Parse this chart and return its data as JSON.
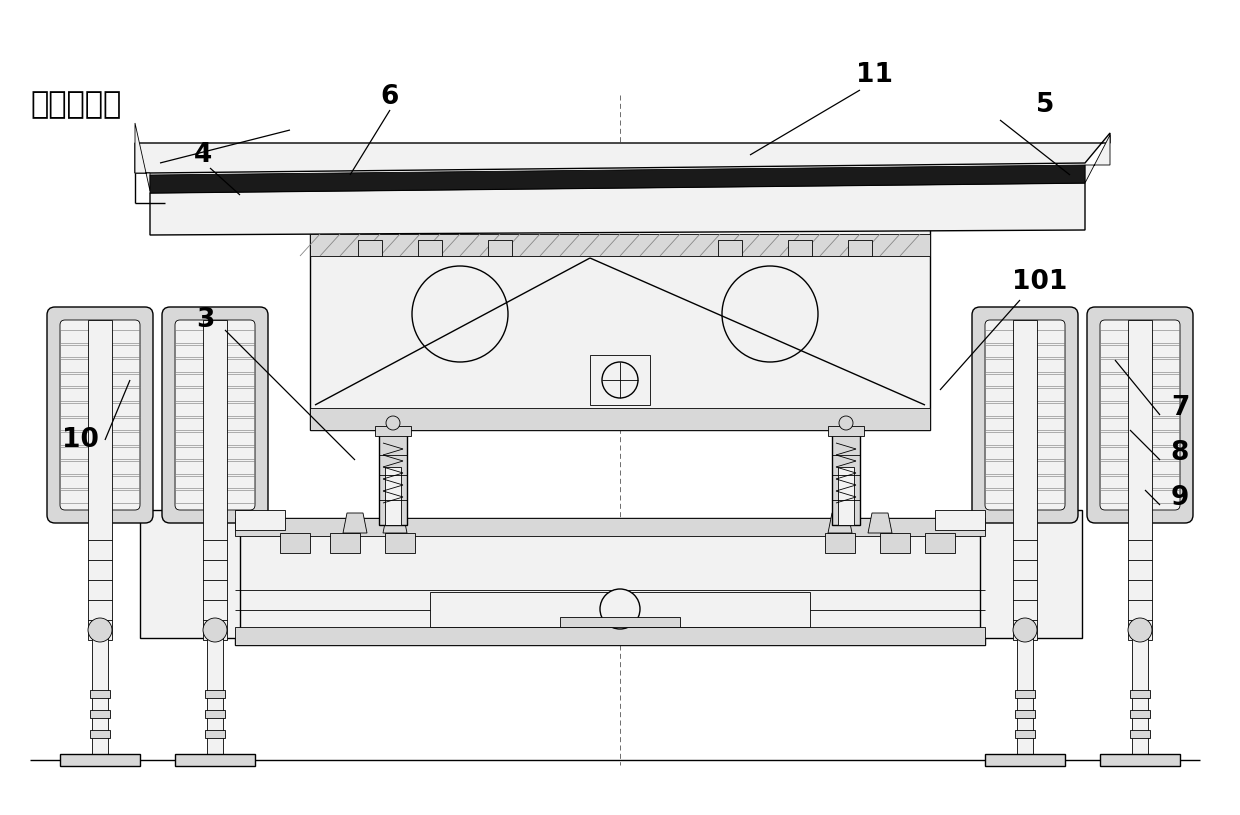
{
  "bg_color": "#ffffff",
  "figsize": [
    12.4,
    8.15
  ],
  "dpi": 100,
  "labels": {
    "tilt_sensor": "倾角传感器",
    "11": "11",
    "5": "5",
    "6": "6",
    "4": "4",
    "3": "3",
    "101": "101",
    "7": "7",
    "8": "8",
    "9": "9",
    "10": "10"
  },
  "lw_thin": 0.6,
  "lw_med": 1.0,
  "lw_thick": 2.0,
  "lw_vthick": 5.0,
  "gray_light": "#f2f2f2",
  "gray_mid": "#d8d8d8",
  "gray_dark": "#aaaaaa",
  "black": "#000000",
  "near_black": "#1a1a1a"
}
